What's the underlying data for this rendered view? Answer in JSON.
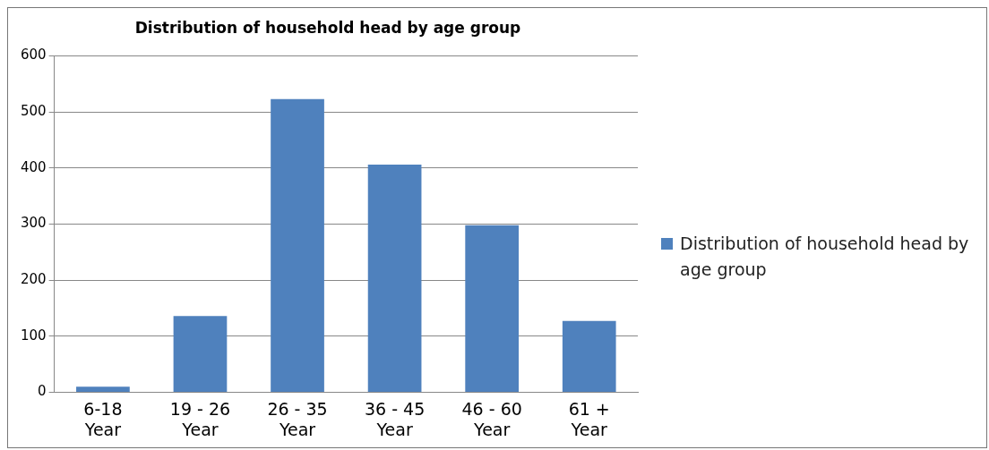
{
  "chart_data": {
    "type": "bar",
    "title": "Distribution of household head by age group",
    "categories": [
      "6-18 Year",
      "19 - 26 Year",
      "26 - 35 Year",
      "36 - 45 Year",
      "46 - 60 Year",
      "61 + Year"
    ],
    "series": [
      {
        "name": "Distribution of household head by age group",
        "color": "#4f81bd",
        "values": [
          10,
          136,
          523,
          406,
          298,
          127
        ]
      }
    ],
    "ylim": [
      0,
      600
    ],
    "yticks": [
      0,
      100,
      200,
      300,
      400,
      500,
      600
    ],
    "grid": "y",
    "legend": "right"
  }
}
